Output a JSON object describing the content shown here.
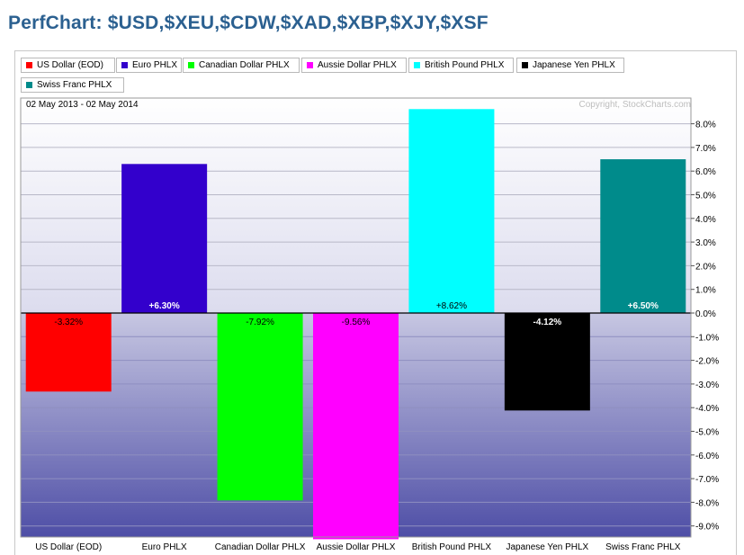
{
  "title": "PerfChart: $USD,$XEU,$CDW,$XAD,$XBP,$XJY,$XSF",
  "date_range": "02 May 2013 - 02 May 2014",
  "copyright": "Copyright, StockCharts.com",
  "legend": [
    {
      "label": "US Dollar (EOD)",
      "color": "#ff0000"
    },
    {
      "label": "Euro PHLX",
      "color": "#3300cc"
    },
    {
      "label": "Canadian Dollar PHLX",
      "color": "#00ff00"
    },
    {
      "label": "Aussie Dollar PHLX",
      "color": "#ff00ff"
    },
    {
      "label": "British Pound PHLX",
      "color": "#00ffff"
    },
    {
      "label": "Japanese Yen PHLX",
      "color": "#000000"
    },
    {
      "label": "Swiss Franc PHLX",
      "color": "#008b8b"
    }
  ],
  "chart_data": {
    "type": "bar",
    "title": "PerfChart: $USD,$XEU,$CDW,$XAD,$XBP,$XJY,$XSF",
    "categories": [
      "US Dollar (EOD)",
      "Euro PHLX",
      "Canadian Dollar PHLX",
      "Aussie Dollar PHLX",
      "British Pound PHLX",
      "Japanese Yen PHLX",
      "Swiss Franc PHLX"
    ],
    "values": [
      -3.32,
      6.3,
      -7.92,
      -9.56,
      8.62,
      -4.12,
      6.5
    ],
    "value_labels": [
      "-3.32%",
      "+6.30%",
      "-7.92%",
      "-9.56%",
      "+8.62%",
      "-4.12%",
      "+6.50%"
    ],
    "colors": [
      "#ff0000",
      "#3300cc",
      "#00ff00",
      "#ff00ff",
      "#00ffff",
      "#000000",
      "#008b8b"
    ],
    "label_colors": [
      "#000000",
      "#ffffff",
      "#000000",
      "#000000",
      "#000000",
      "#ffffff",
      "#ffffff"
    ],
    "y_ticks": [
      8,
      7,
      6,
      5,
      4,
      3,
      2,
      1,
      0,
      -1,
      -2,
      -3,
      -4,
      -5,
      -6,
      -7,
      -8,
      -9
    ],
    "y_tick_labels": [
      "8.0%",
      "7.0%",
      "6.0%",
      "5.0%",
      "4.0%",
      "3.0%",
      "2.0%",
      "1.0%",
      "0.0%",
      "-1.0%",
      "-2.0%",
      "-3.0%",
      "-4.0%",
      "-5.0%",
      "-6.0%",
      "-7.0%",
      "-8.0%",
      "-9.0%"
    ],
    "ylim": [
      -9.56,
      8.62
    ],
    "grid": true,
    "y_axis_side": "right",
    "legend_position": "top"
  }
}
